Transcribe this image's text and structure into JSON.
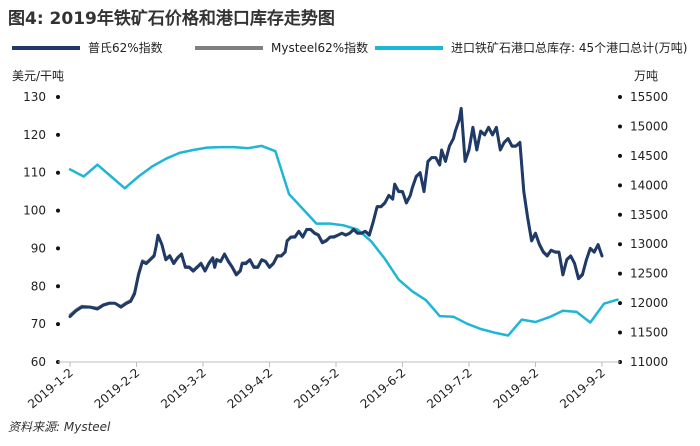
{
  "title": "图4: 2019年铁矿石价格和港口库存走势图",
  "source": "资料来源: Mysteel",
  "colors": {
    "puri": "#1f3a66",
    "mysteel": "#7f7f7f",
    "inventory": "#1fb6d6",
    "axis": "#bfbfbf"
  },
  "chart_data": {
    "type": "line",
    "left_axis": {
      "label": "美元/干吨",
      "min": 60,
      "max": 130,
      "ticks": [
        60,
        70,
        80,
        90,
        100,
        110,
        120,
        130
      ]
    },
    "right_axis": {
      "label": "万吨",
      "min": 11000,
      "max": 15500,
      "ticks": [
        11000,
        11500,
        12000,
        12500,
        13000,
        13500,
        14000,
        14500,
        15000,
        15500
      ]
    },
    "x_ticks": [
      "2019-1-2",
      "2019-2-2",
      "2019-3-2",
      "2019-4-2",
      "2019-5-2",
      "2019-6-2",
      "2019-7-2",
      "2019-8-2",
      "2019-9-2"
    ],
    "series": [
      {
        "name": "普氏62%指数",
        "axis": "left",
        "points": [
          [
            0,
            72
          ],
          [
            3,
            73.5
          ],
          [
            6,
            74.5
          ],
          [
            10,
            74.5
          ],
          [
            14,
            74
          ],
          [
            17,
            75
          ],
          [
            20,
            75.5
          ],
          [
            23,
            75.5
          ],
          [
            26,
            74.5
          ],
          [
            29,
            75.5
          ],
          [
            31,
            76
          ],
          [
            33,
            78
          ],
          [
            35,
            83
          ],
          [
            37,
            86.5
          ],
          [
            39,
            86
          ],
          [
            41,
            87
          ],
          [
            43,
            88
          ],
          [
            44,
            90.5
          ],
          [
            45,
            93.5
          ],
          [
            47,
            91
          ],
          [
            49,
            87
          ],
          [
            51,
            88
          ],
          [
            53,
            86
          ],
          [
            55,
            87.5
          ],
          [
            57,
            88.5
          ],
          [
            59,
            85
          ],
          [
            61,
            85
          ],
          [
            63,
            84
          ],
          [
            65,
            85
          ],
          [
            67,
            86
          ],
          [
            69,
            84
          ],
          [
            71,
            86
          ],
          [
            73,
            87.5
          ],
          [
            74,
            85
          ],
          [
            75,
            87
          ],
          [
            77,
            86.5
          ],
          [
            79,
            88.5
          ],
          [
            81,
            86.5
          ],
          [
            83,
            85
          ],
          [
            85,
            83
          ],
          [
            87,
            84
          ],
          [
            88,
            86
          ],
          [
            90,
            86
          ],
          [
            92,
            87
          ],
          [
            94,
            85
          ],
          [
            96,
            85
          ],
          [
            98,
            87
          ],
          [
            100,
            86.5
          ],
          [
            102,
            85
          ],
          [
            104,
            86
          ],
          [
            106,
            88
          ],
          [
            108,
            88
          ],
          [
            110,
            89
          ],
          [
            111,
            92
          ],
          [
            113,
            93
          ],
          [
            115,
            93
          ],
          [
            117,
            94.5
          ],
          [
            119,
            93
          ],
          [
            121,
            95
          ],
          [
            123,
            95
          ],
          [
            125,
            94
          ],
          [
            127,
            93.5
          ],
          [
            129,
            91.5
          ],
          [
            131,
            92
          ],
          [
            133,
            93
          ],
          [
            135,
            93
          ],
          [
            137,
            93.5
          ],
          [
            139,
            94
          ],
          [
            141,
            93.5
          ],
          [
            143,
            94
          ],
          [
            145,
            95
          ],
          [
            147,
            94
          ],
          [
            149,
            94
          ],
          [
            151,
            94.5
          ],
          [
            153,
            93.5
          ],
          [
            155,
            97
          ],
          [
            157,
            101
          ],
          [
            159,
            101
          ],
          [
            161,
            102
          ],
          [
            163,
            104
          ],
          [
            165,
            103
          ],
          [
            166,
            107
          ],
          [
            168,
            105
          ],
          [
            170,
            105
          ],
          [
            172,
            102
          ],
          [
            174,
            104
          ],
          [
            175,
            106
          ],
          [
            177,
            109
          ],
          [
            179,
            110
          ],
          [
            181,
            105
          ],
          [
            183,
            113
          ],
          [
            185,
            114
          ],
          [
            187,
            114
          ],
          [
            189,
            112
          ],
          [
            190,
            116
          ],
          [
            192,
            113
          ],
          [
            194,
            117
          ],
          [
            196,
            119
          ],
          [
            197,
            121
          ],
          [
            199,
            124
          ],
          [
            200,
            127
          ],
          [
            202,
            113
          ],
          [
            204,
            116
          ],
          [
            206,
            122
          ],
          [
            208,
            116
          ],
          [
            210,
            121
          ],
          [
            212,
            120
          ],
          [
            214,
            122
          ],
          [
            216,
            120
          ],
          [
            218,
            122
          ],
          [
            220,
            116
          ],
          [
            222,
            118
          ],
          [
            224,
            119
          ],
          [
            226,
            117
          ],
          [
            228,
            117
          ],
          [
            230,
            118
          ],
          [
            232,
            105
          ],
          [
            234,
            98
          ],
          [
            236,
            92
          ],
          [
            238,
            94
          ],
          [
            240,
            91
          ],
          [
            242,
            89
          ],
          [
            244,
            88
          ],
          [
            246,
            89.5
          ],
          [
            248,
            89
          ],
          [
            250,
            89
          ],
          [
            252,
            83
          ],
          [
            254,
            87
          ],
          [
            256,
            88
          ],
          [
            258,
            86
          ],
          [
            260,
            82
          ],
          [
            262,
            83
          ],
          [
            264,
            87
          ],
          [
            266,
            90
          ],
          [
            268,
            89
          ],
          [
            270,
            91
          ],
          [
            272,
            88
          ]
        ]
      },
      {
        "name": "Mysteel62%指数",
        "axis": "left",
        "points": [
          [
            0,
            72.5
          ],
          [
            3,
            73.8
          ],
          [
            6,
            74.8
          ],
          [
            10,
            74.6
          ],
          [
            14,
            74.3
          ],
          [
            17,
            75.2
          ],
          [
            20,
            75.6
          ],
          [
            23,
            75.5
          ],
          [
            26,
            74.8
          ],
          [
            29,
            75.8
          ],
          [
            31,
            76.3
          ],
          [
            33,
            78.5
          ],
          [
            35,
            83.5
          ],
          [
            37,
            86.8
          ],
          [
            39,
            86.3
          ],
          [
            41,
            87.2
          ],
          [
            43,
            88.3
          ],
          [
            44,
            90.8
          ],
          [
            45,
            93.2
          ],
          [
            47,
            91.2
          ],
          [
            49,
            87.3
          ],
          [
            51,
            88.2
          ],
          [
            53,
            86.3
          ],
          [
            55,
            87.7
          ],
          [
            57,
            88.6
          ],
          [
            59,
            85.3
          ],
          [
            61,
            85.2
          ],
          [
            63,
            84.3
          ],
          [
            65,
            85.2
          ],
          [
            67,
            86.2
          ],
          [
            69,
            84.3
          ],
          [
            71,
            86.3
          ],
          [
            73,
            87.6
          ],
          [
            74,
            85.3
          ],
          [
            75,
            87.2
          ],
          [
            77,
            86.7
          ],
          [
            79,
            88.6
          ],
          [
            81,
            86.8
          ],
          [
            83,
            85.2
          ],
          [
            85,
            83.4
          ],
          [
            87,
            84.2
          ],
          [
            88,
            86.2
          ],
          [
            90,
            86.3
          ],
          [
            92,
            87.1
          ],
          [
            94,
            85.3
          ],
          [
            96,
            85.2
          ],
          [
            98,
            87.1
          ],
          [
            100,
            86.7
          ],
          [
            102,
            85.2
          ],
          [
            104,
            86.2
          ],
          [
            106,
            88.2
          ],
          [
            108,
            88.1
          ],
          [
            110,
            89.2
          ],
          [
            111,
            92.1
          ],
          [
            113,
            93.1
          ],
          [
            115,
            93.2
          ],
          [
            117,
            94.6
          ],
          [
            119,
            93.2
          ],
          [
            121,
            95.1
          ],
          [
            123,
            95.1
          ],
          [
            125,
            94.2
          ],
          [
            127,
            93.7
          ],
          [
            129,
            91.8
          ],
          [
            131,
            92.2
          ],
          [
            133,
            93.1
          ],
          [
            135,
            93.2
          ],
          [
            137,
            93.6
          ],
          [
            139,
            94.1
          ],
          [
            141,
            93.7
          ],
          [
            143,
            94.1
          ],
          [
            145,
            95.1
          ],
          [
            147,
            94.2
          ],
          [
            149,
            94.1
          ],
          [
            151,
            94.6
          ],
          [
            153,
            93.8
          ],
          [
            155,
            97.1
          ],
          [
            157,
            101.1
          ],
          [
            159,
            101.2
          ],
          [
            161,
            102.2
          ],
          [
            163,
            104.1
          ],
          [
            165,
            103.2
          ],
          [
            166,
            106.8
          ],
          [
            168,
            105.2
          ],
          [
            170,
            105.1
          ],
          [
            172,
            102.3
          ],
          [
            174,
            104.1
          ],
          [
            175,
            106.1
          ],
          [
            177,
            108.8
          ],
          [
            179,
            110.1
          ],
          [
            181,
            105.3
          ],
          [
            183,
            112.8
          ],
          [
            185,
            114.1
          ],
          [
            187,
            114
          ],
          [
            189,
            112.3
          ],
          [
            190,
            115.8
          ],
          [
            192,
            113.2
          ],
          [
            194,
            117.1
          ],
          [
            196,
            118.9
          ],
          [
            197,
            121
          ],
          [
            199,
            123.8
          ],
          [
            200,
            126.5
          ],
          [
            202,
            113.4
          ],
          [
            204,
            116.2
          ],
          [
            206,
            121.8
          ],
          [
            208,
            116.3
          ],
          [
            210,
            121
          ],
          [
            212,
            120.1
          ],
          [
            214,
            121.9
          ],
          [
            216,
            120.2
          ],
          [
            218,
            121.8
          ],
          [
            220,
            116.3
          ],
          [
            222,
            118.1
          ],
          [
            224,
            119
          ],
          [
            226,
            117.2
          ],
          [
            228,
            117.1
          ],
          [
            230,
            118
          ],
          [
            232,
            105.3
          ],
          [
            234,
            98.3
          ],
          [
            236,
            92.4
          ],
          [
            238,
            94.1
          ],
          [
            240,
            91.3
          ],
          [
            242,
            89.3
          ],
          [
            244,
            88.3
          ],
          [
            246,
            89.6
          ],
          [
            248,
            89.2
          ],
          [
            250,
            89.1
          ],
          [
            252,
            83.4
          ],
          [
            254,
            87.2
          ],
          [
            256,
            88.1
          ],
          [
            258,
            86.2
          ],
          [
            260,
            82.4
          ],
          [
            262,
            83.3
          ],
          [
            264,
            87.1
          ],
          [
            266,
            90.1
          ],
          [
            268,
            89.2
          ],
          [
            270,
            91
          ],
          [
            272,
            88.2
          ]
        ]
      },
      {
        "name": "进口铁矿石港口总库存: 45个港口总计(万吨)",
        "axis": "right",
        "points": [
          [
            0,
            14270
          ],
          [
            7,
            14150
          ],
          [
            14,
            14350
          ],
          [
            21,
            14150
          ],
          [
            28,
            13950
          ],
          [
            35,
            14150
          ],
          [
            42,
            14320
          ],
          [
            49,
            14450
          ],
          [
            56,
            14550
          ],
          [
            63,
            14600
          ],
          [
            70,
            14640
          ],
          [
            77,
            14650
          ],
          [
            84,
            14650
          ],
          [
            91,
            14630
          ],
          [
            98,
            14670
          ],
          [
            105,
            14580
          ],
          [
            112,
            13850
          ],
          [
            119,
            13600
          ],
          [
            126,
            13350
          ],
          [
            133,
            13350
          ],
          [
            140,
            13320
          ],
          [
            147,
            13250
          ],
          [
            154,
            13050
          ],
          [
            161,
            12750
          ],
          [
            168,
            12400
          ],
          [
            175,
            12200
          ],
          [
            182,
            12050
          ],
          [
            189,
            11780
          ],
          [
            196,
            11770
          ],
          [
            203,
            11650
          ],
          [
            210,
            11560
          ],
          [
            217,
            11500
          ],
          [
            224,
            11450
          ],
          [
            231,
            11720
          ],
          [
            238,
            11680
          ],
          [
            245,
            11760
          ],
          [
            252,
            11870
          ],
          [
            259,
            11850
          ],
          [
            266,
            11670
          ],
          [
            273,
            11990
          ],
          [
            280,
            12060
          ]
        ]
      }
    ]
  }
}
